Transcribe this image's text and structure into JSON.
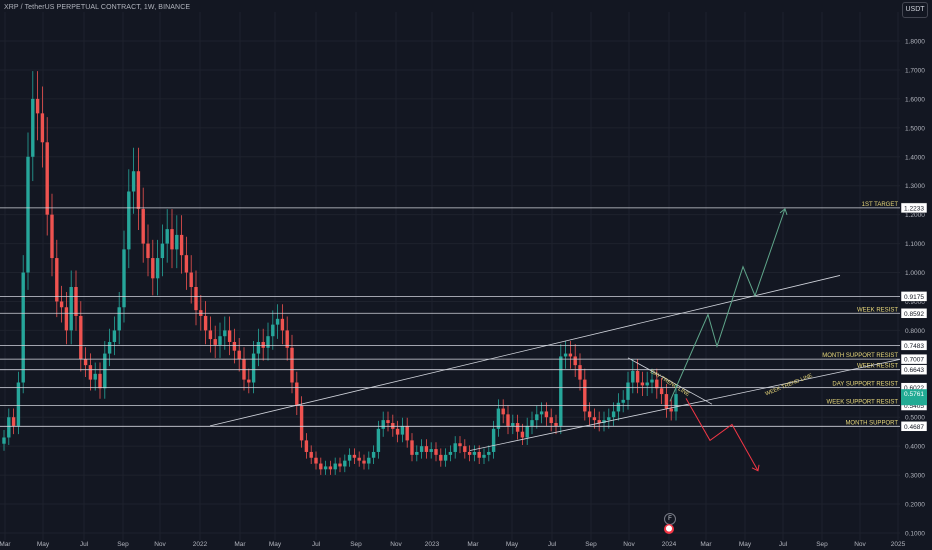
{
  "header": {
    "symbol_line": "XRP / TetherUS PERPETUAL CONTRACT, 1W, BINANCE",
    "currency_button": "USDT"
  },
  "colors": {
    "background": "#131722",
    "grid": "#1e222d",
    "up": "#26a69a",
    "down": "#ef5350",
    "line_white": "#d1d4dc",
    "label_gold": "#e8d87a",
    "arrow_green": "#5fa58a",
    "arrow_red": "#f23645",
    "price_tag": "#22ab94"
  },
  "icons": {
    "event": "F",
    "flag": "flag-icon"
  },
  "chart_data": {
    "type": "candlestick",
    "title": "",
    "ylim": [
      0.1,
      1.9
    ],
    "y_ticks": [
      "0.1000",
      "0.2000",
      "0.3000",
      "0.4000",
      "0.5000",
      "0.6000",
      "0.7000",
      "0.8000",
      "0.9000",
      "1.0000",
      "1.1000",
      "1.2000",
      "1.3000",
      "1.4000",
      "1.5000",
      "1.6000",
      "1.7000",
      "1.8000"
    ],
    "x_ticks": [
      "Mar",
      "May",
      "Jul",
      "Sep",
      "Nov",
      "2022",
      "Mar",
      "May",
      "Jul",
      "Sep",
      "Nov",
      "2023",
      "Mar",
      "May",
      "Jul",
      "Sep",
      "Nov",
      "2024",
      "Mar",
      "May",
      "Jul",
      "Sep",
      "Nov",
      "2025"
    ],
    "grid": true,
    "candles": {
      "start": "2021-02-22",
      "interval_weeks": 1,
      "close": [
        0.43,
        0.5,
        0.47,
        0.62,
        1.0,
        1.4,
        1.6,
        1.55,
        1.45,
        1.2,
        1.05,
        0.9,
        0.88,
        0.8,
        0.95,
        0.85,
        0.7,
        0.68,
        0.63,
        0.65,
        0.6,
        0.72,
        0.76,
        0.8,
        0.88,
        1.08,
        1.28,
        1.35,
        1.22,
        1.1,
        1.05,
        0.98,
        1.05,
        1.1,
        1.15,
        1.08,
        1.13,
        1.06,
        1.0,
        0.95,
        0.87,
        0.85,
        0.8,
        0.77,
        0.75,
        0.78,
        0.8,
        0.76,
        0.73,
        0.7,
        0.63,
        0.62,
        0.72,
        0.76,
        0.74,
        0.78,
        0.82,
        0.84,
        0.8,
        0.74,
        0.62,
        0.54,
        0.42,
        0.38,
        0.36,
        0.34,
        0.32,
        0.33,
        0.32,
        0.34,
        0.33,
        0.35,
        0.37,
        0.36,
        0.35,
        0.34,
        0.36,
        0.38,
        0.46,
        0.49,
        0.48,
        0.46,
        0.44,
        0.47,
        0.42,
        0.37,
        0.38,
        0.4,
        0.38,
        0.39,
        0.37,
        0.35,
        0.37,
        0.38,
        0.41,
        0.4,
        0.38,
        0.37,
        0.38,
        0.36,
        0.37,
        0.38,
        0.46,
        0.53,
        0.51,
        0.47,
        0.48,
        0.45,
        0.43,
        0.47,
        0.49,
        0.51,
        0.52,
        0.5,
        0.48,
        0.47,
        0.71,
        0.72,
        0.71,
        0.68,
        0.63,
        0.52,
        0.5,
        0.49,
        0.48,
        0.49,
        0.5,
        0.52,
        0.55,
        0.56,
        0.62,
        0.66,
        0.62,
        0.61,
        0.62,
        0.63,
        0.6,
        0.58,
        0.53,
        0.52,
        0.58
      ]
    },
    "horizontal_levels": [
      {
        "label": "1ST TARGET",
        "value": 1.2233,
        "tag": "1.2233"
      },
      {
        "label": "",
        "value": 0.9175,
        "tag": "0.9175"
      },
      {
        "label": "WEEK RESIST",
        "value": 0.8592,
        "tag": "0.8592"
      },
      {
        "label": "",
        "value": 0.7483,
        "tag": "0.7483"
      },
      {
        "label": "MONTH SUPPORT RESIST",
        "value": 0.7007,
        "tag": "0.7007"
      },
      {
        "label": "WEEK RESIST",
        "value": 0.6643,
        "tag": "0.6643"
      },
      {
        "label": "DAY SUPPORT RESIST",
        "value": 0.6022,
        "tag": "0.6022"
      },
      {
        "label": "WEEK SUPPORT RESIST",
        "value": 0.5405,
        "tag": "0.5405"
      },
      {
        "label": "MONTH SUPPORT",
        "value": 0.4687,
        "tag": "0.4687"
      }
    ],
    "current_price": {
      "value": 0.5761,
      "tag": "0.5761"
    },
    "annotations": [
      {
        "text": "DAY TREND LINE",
        "kind": "trendline"
      },
      {
        "text": "WEEK TREND LINE",
        "kind": "trendline"
      }
    ]
  }
}
